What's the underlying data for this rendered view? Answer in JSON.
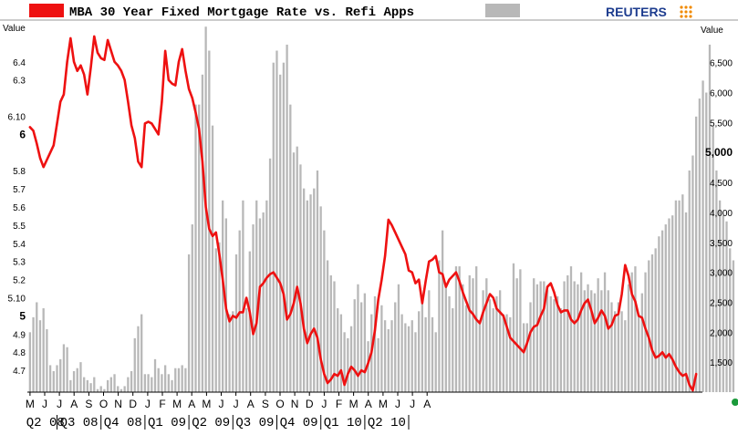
{
  "header": {
    "title": "MBA 30 Year Fixed Mortgage Rate vs. Refi Apps",
    "brand": "REUTERS",
    "rate_legend_color": "#ee1111",
    "refi_legend_color": "#b8b8b8"
  },
  "chart_data": {
    "type": "bar+line",
    "title": "MBA 30 Year Fixed Mortgage Rate vs. Refi Apps",
    "left_axis": {
      "label": "Value",
      "range": [
        4.58,
        6.62
      ],
      "ticks": [
        {
          "label": "6.4",
          "value": 6.4,
          "bold": false
        },
        {
          "label": "6.3",
          "value": 6.3,
          "bold": false
        },
        {
          "label": "6.10",
          "value": 6.1,
          "bold": false
        },
        {
          "label": "6",
          "value": 6.0,
          "bold": true
        },
        {
          "label": "5.8",
          "value": 5.8,
          "bold": false
        },
        {
          "label": "5.7",
          "value": 5.7,
          "bold": false
        },
        {
          "label": "5.6",
          "value": 5.6,
          "bold": false
        },
        {
          "label": "5.5",
          "value": 5.5,
          "bold": false
        },
        {
          "label": "5.4",
          "value": 5.4,
          "bold": false
        },
        {
          "label": "5.3",
          "value": 5.3,
          "bold": false
        },
        {
          "label": "5.2",
          "value": 5.2,
          "bold": false
        },
        {
          "label": "5.10",
          "value": 5.1,
          "bold": false
        },
        {
          "label": "5",
          "value": 5.0,
          "bold": true
        },
        {
          "label": "4.9",
          "value": 4.9,
          "bold": false
        },
        {
          "label": "4.8",
          "value": 4.8,
          "bold": false
        },
        {
          "label": "4.7",
          "value": 4.7,
          "bold": false
        }
      ]
    },
    "right_axis": {
      "label": "Value",
      "range": [
        1000,
        7180
      ],
      "ticks": [
        {
          "label": "6,500",
          "value": 6500,
          "bold": false
        },
        {
          "label": "6,000",
          "value": 6000,
          "bold": false
        },
        {
          "label": "5,500",
          "value": 5500,
          "bold": false
        },
        {
          "label": "5,000",
          "value": 5000,
          "bold": true
        },
        {
          "label": "4,500",
          "value": 4500,
          "bold": false
        },
        {
          "label": "4,000",
          "value": 4000,
          "bold": false
        },
        {
          "label": "3,500",
          "value": 3500,
          "bold": false
        },
        {
          "label": "3,000",
          "value": 3000,
          "bold": false
        },
        {
          "label": "2,500",
          "value": 2500,
          "bold": false
        },
        {
          "label": "2,000",
          "value": 2000,
          "bold": false
        },
        {
          "label": "1,500",
          "value": 1500,
          "bold": false
        }
      ]
    },
    "months": [
      "M",
      "J",
      "J",
      "A",
      "S",
      "O",
      "N",
      "D",
      "J",
      "F",
      "M",
      "A",
      "M",
      "J",
      "J",
      "A",
      "S",
      "O",
      "N",
      "D",
      "J",
      "F",
      "M",
      "A",
      "M",
      "J",
      "J",
      "A"
    ],
    "month_positions": [
      0,
      4.35,
      8.7,
      13.05,
      17.4,
      21.75,
      26.1,
      30.45,
      34.8,
      39.15,
      43.5,
      47.85,
      52.2,
      56.55,
      60.9,
      65.25,
      69.6,
      73.95,
      78.3,
      82.65,
      87.0,
      91.35,
      95.7,
      100.05,
      104.4,
      108.75,
      113.1,
      117.45
    ],
    "quarters": [
      {
        "label": "Q2 08",
        "from": -1,
        "to": 8
      },
      {
        "label": "Q3 08",
        "from": 8,
        "to": 21
      },
      {
        "label": "Q4 08",
        "from": 21,
        "to": 34
      },
      {
        "label": "Q1 09",
        "from": 34,
        "to": 47
      },
      {
        "label": "Q2 09",
        "from": 47,
        "to": 60
      },
      {
        "label": "Q3 09",
        "from": 60,
        "to": 73
      },
      {
        "label": "Q4 09",
        "from": 73,
        "to": 86
      },
      {
        "label": "Q1 10",
        "from": 86,
        "to": 99
      },
      {
        "label": "Q2 10",
        "from": 99,
        "to": 112
      }
    ],
    "series": [
      {
        "name": "MBA 30 Year Fixed Mortgage Rate",
        "kind": "line",
        "axis": "left",
        "color": "#ee1111",
        "values": [
          6.04,
          6.02,
          5.95,
          5.87,
          5.82,
          5.86,
          5.9,
          5.94,
          6.06,
          6.18,
          6.22,
          6.4,
          6.53,
          6.4,
          6.35,
          6.38,
          6.33,
          6.22,
          6.37,
          6.54,
          6.45,
          6.42,
          6.41,
          6.52,
          6.46,
          6.4,
          6.38,
          6.35,
          6.3,
          6.18,
          6.05,
          5.98,
          5.85,
          5.82,
          6.06,
          6.07,
          6.06,
          6.03,
          6.0,
          6.18,
          6.46,
          6.3,
          6.28,
          6.27,
          6.4,
          6.47,
          6.35,
          6.25,
          6.2,
          6.12,
          6.03,
          5.85,
          5.6,
          5.48,
          5.44,
          5.46,
          5.34,
          5.2,
          5.04,
          4.97,
          5.0,
          4.99,
          5.02,
          5.02,
          5.1,
          5.02,
          4.9,
          4.96,
          5.16,
          5.18,
          5.21,
          5.23,
          5.24,
          5.21,
          5.18,
          5.12,
          4.98,
          5.01,
          5.07,
          5.16,
          5.07,
          4.93,
          4.85,
          4.9,
          4.93,
          4.88,
          4.76,
          4.68,
          4.63,
          4.65,
          4.68,
          4.67,
          4.7,
          4.62,
          4.68,
          4.72,
          4.7,
          4.67,
          4.7,
          4.69,
          4.74,
          4.8,
          4.92,
          5.09,
          5.2,
          5.33,
          5.53,
          5.5,
          5.46,
          5.42,
          5.38,
          5.34,
          5.25,
          5.24,
          5.18,
          5.2,
          5.07,
          5.19,
          5.3,
          5.31,
          5.33,
          5.24,
          5.23,
          5.16,
          5.2,
          5.22,
          5.24,
          5.19,
          5.13,
          5.08,
          5.03,
          5.01,
          4.98,
          4.96,
          5.02,
          5.07,
          5.12,
          5.1,
          5.04,
          5.02,
          5.0,
          4.94,
          4.88,
          4.86,
          4.84,
          4.82,
          4.8,
          4.85,
          4.91,
          4.94,
          4.95,
          5.0,
          5.04,
          5.16,
          5.18,
          5.13,
          5.06,
          5.02,
          5.03,
          5.03,
          4.98,
          4.96,
          4.98,
          5.03,
          5.07,
          5.09,
          5.03,
          4.96,
          4.99,
          5.03,
          5.0,
          4.93,
          4.95,
          5.0,
          5.01,
          5.12,
          5.28,
          5.22,
          5.12,
          5.08,
          5.0,
          4.99,
          4.93,
          4.88,
          4.81,
          4.77,
          4.78,
          4.8,
          4.77,
          4.79,
          4.76,
          4.72,
          4.69,
          4.67,
          4.68,
          4.62,
          4.59,
          4.68
        ]
      },
      {
        "name": "Refi Apps",
        "kind": "bar",
        "axis": "right",
        "color": "#b8b8b8",
        "values": [
          2000,
          2250,
          2500,
          2200,
          2400,
          2050,
          1450,
          1350,
          1450,
          1550,
          1800,
          1750,
          1200,
          1350,
          1400,
          1500,
          1250,
          1200,
          1150,
          1250,
          1050,
          1100,
          1050,
          1200,
          1250,
          1300,
          1100,
          1050,
          1100,
          1250,
          1350,
          1900,
          2100,
          2300,
          1300,
          1300,
          1250,
          1550,
          1400,
          1300,
          1450,
          1300,
          1200,
          1400,
          1400,
          1450,
          1400,
          3300,
          3800,
          5800,
          5800,
          6300,
          7100,
          6700,
          5450,
          3400,
          3500,
          4200,
          3900,
          2300,
          2350,
          3300,
          3700,
          4200,
          2400,
          3350,
          3800,
          4200,
          3900,
          4000,
          4200,
          4900,
          6500,
          6700,
          6300,
          6500,
          6800,
          5800,
          5000,
          5100,
          4800,
          4400,
          4200,
          4300,
          4400,
          4700,
          4100,
          3700,
          3200,
          2950,
          2850,
          2400,
          2300,
          2000,
          1900,
          2100,
          2550,
          2800,
          2500,
          2650,
          1850,
          2300,
          2600,
          1900,
          2450,
          2200,
          2050,
          2200,
          2500,
          2800,
          2300,
          2150,
          2100,
          2200,
          2000,
          2350,
          2500,
          2250,
          2700,
          2250,
          2000,
          3200,
          3700,
          2800,
          2600,
          2400,
          3100,
          3100,
          2800,
          2450,
          2950,
          2900,
          3100,
          2200,
          2700,
          2900,
          2550,
          2400,
          2600,
          2700,
          2300,
          2300,
          2250,
          3150,
          2900,
          3050,
          2150,
          2150,
          2500,
          2900,
          2800,
          2850,
          2850,
          2700,
          2600,
          2550,
          2600,
          2400,
          2850,
          2950,
          3100,
          2850,
          2800,
          3000,
          2700,
          2800,
          2700,
          2650,
          2900,
          2700,
          3000,
          2700,
          2500,
          2350,
          2500,
          2350,
          2200,
          2800,
          3000,
          3100,
          2300,
          2650,
          3000,
          3200,
          3300,
          3400,
          3600,
          3700,
          3800,
          3900,
          3950,
          4200,
          4200,
          4300,
          4000,
          4700,
          4950,
          5600,
          5900,
          6200,
          6000,
          6800,
          5450,
          4700,
          4200,
          3950,
          3850,
          3400,
          3200
        ]
      }
    ],
    "grid": false,
    "legend": "top"
  }
}
